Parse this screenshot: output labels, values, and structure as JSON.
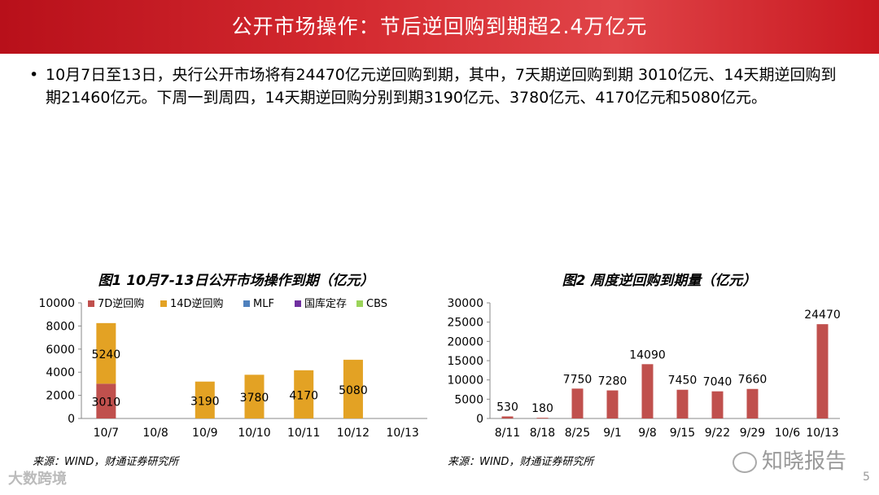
{
  "header": {
    "title": "公开市场操作：节后逆回购到期超2.4万亿元"
  },
  "bullet": {
    "marker": "•",
    "text": "10月7日至13日，央行公开市场将有24470亿元逆回购到期，其中，7天期逆回购到期 3010亿元、14天期逆回购到期21460亿元。下周一到周四，14天期逆回购分别到期3190亿元、3780亿元、4170亿元和5080亿元。"
  },
  "chart_data": [
    {
      "type": "bar",
      "stacked": true,
      "title": "图1 10月7-13日公开市场操作到期（亿元）",
      "categories": [
        "10/7",
        "10/8",
        "10/9",
        "10/10",
        "10/11",
        "10/12",
        "10/13"
      ],
      "series": [
        {
          "name": "7D逆回购",
          "color": "#c0504d",
          "values": [
            3010,
            0,
            0,
            0,
            0,
            0,
            0
          ]
        },
        {
          "name": "14D逆回购",
          "color": "#e3a224",
          "values": [
            5240,
            0,
            3190,
            3780,
            4170,
            5080,
            0
          ]
        },
        {
          "name": "MLF",
          "color": "#4f81bd",
          "values": [
            0,
            0,
            0,
            0,
            0,
            0,
            0
          ]
        },
        {
          "name": "国库定存",
          "color": "#7030a0",
          "values": [
            0,
            0,
            0,
            0,
            0,
            0,
            0
          ]
        },
        {
          "name": "CBS",
          "color": "#9bd45a",
          "values": [
            0,
            0,
            0,
            0,
            0,
            0,
            0
          ]
        }
      ],
      "yticks": [
        "0",
        "2000",
        "4000",
        "6000",
        "8000",
        "10000"
      ],
      "ylim": [
        0,
        10000
      ],
      "legend": "top",
      "grid": false,
      "source": "来源：WIND，财通证券研究所"
    },
    {
      "type": "bar",
      "title": "图2 周度逆回购到期量（亿元）",
      "categories": [
        "8/11",
        "8/18",
        "8/25",
        "9/1",
        "9/8",
        "9/15",
        "9/22",
        "9/29",
        "10/6",
        "10/13"
      ],
      "values": [
        530,
        180,
        7750,
        7280,
        14090,
        7450,
        7040,
        7660,
        0,
        24470
      ],
      "labels": [
        "530",
        "180",
        "7750",
        "7280",
        "14090",
        "7450",
        "7040",
        "7660",
        "",
        "24470"
      ],
      "color": "#c0504d",
      "yticks": [
        "0",
        "5000",
        "10000",
        "15000",
        "20000",
        "25000",
        "30000"
      ],
      "ylim": [
        0,
        30000
      ],
      "grid": false,
      "source": "来源：WIND，财通证券研究所"
    }
  ],
  "watermark": {
    "text": "知晓报告"
  },
  "footer": {
    "logo_text": "大数跨境",
    "page": "5"
  }
}
